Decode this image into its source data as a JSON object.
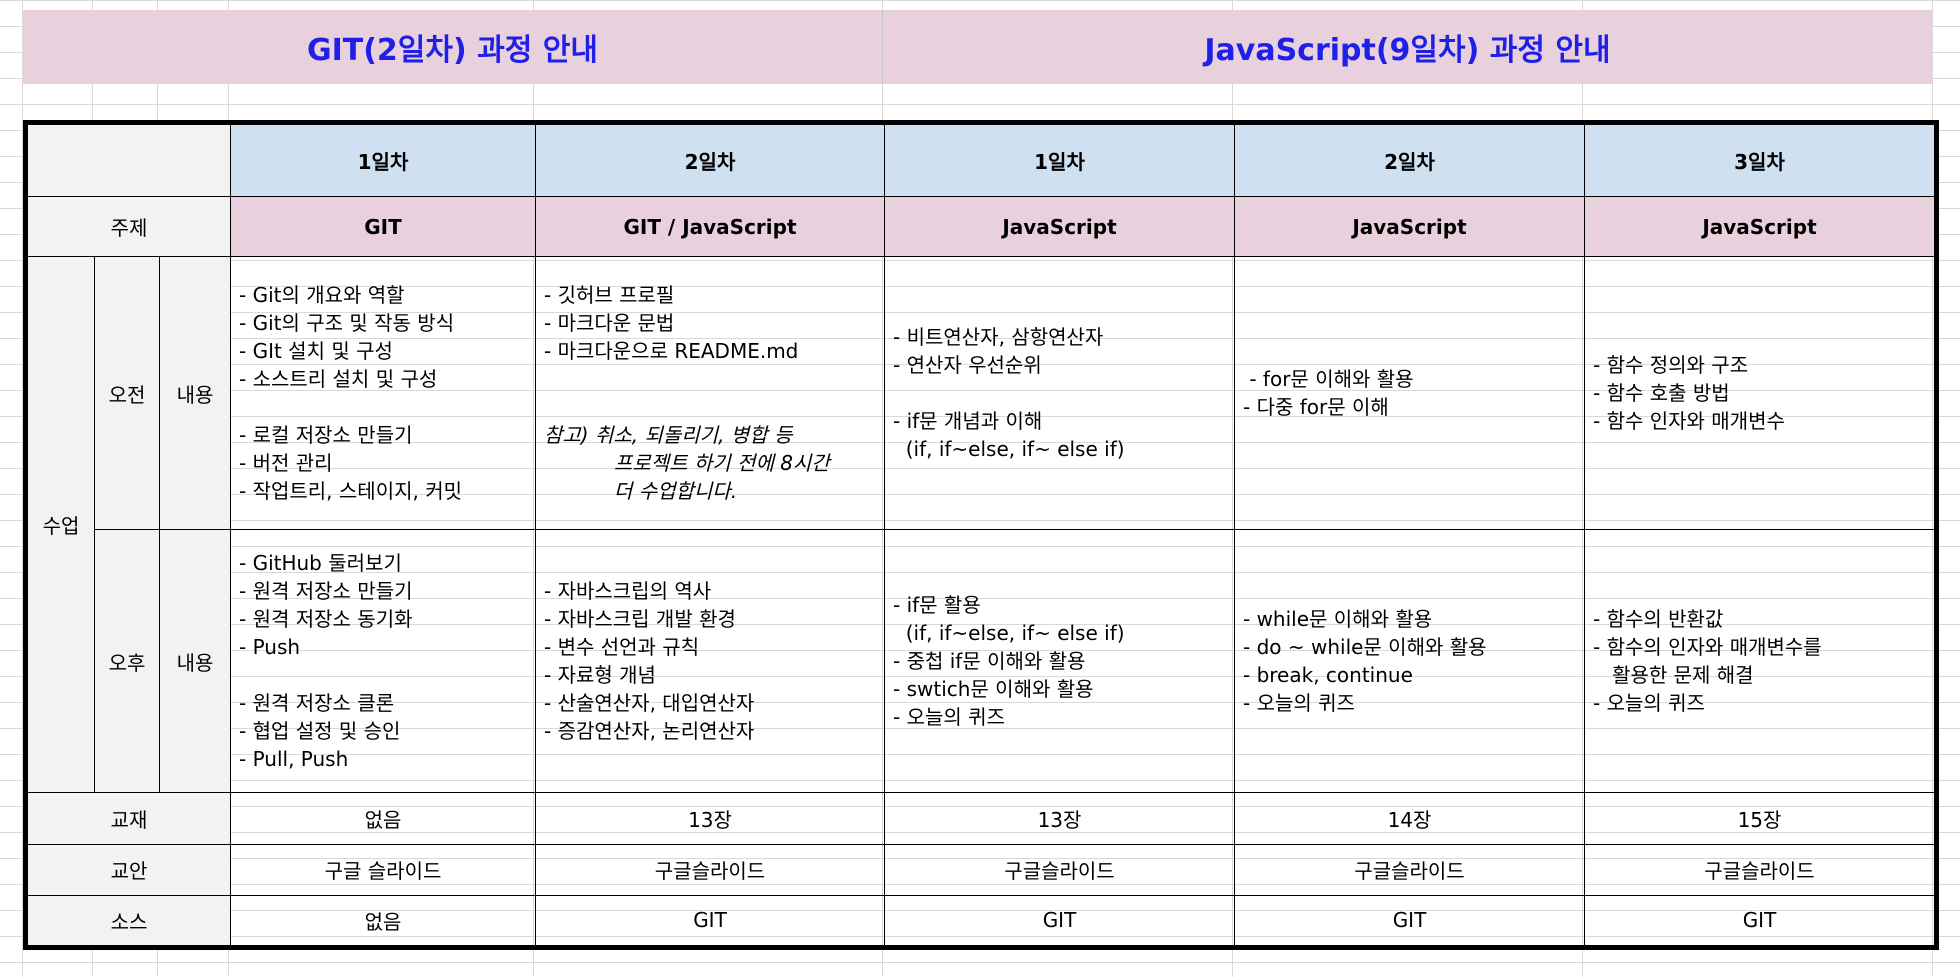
{
  "banners": {
    "left": "GIT(2일차) 과정 안내",
    "right": "JavaScript(9일차) 과정 안내"
  },
  "colors": {
    "banner_bg": "#e8d0dc",
    "banner_text": "#1f1fe8",
    "day_header_bg": "#cfe0f1",
    "day_text": "#e00000"
  },
  "table": {
    "row_labels": {
      "topic": "주제",
      "class": "수업",
      "morning": "오전",
      "afternoon": "오후",
      "content_am": "내용",
      "content_pm": "내용",
      "textbook": "교재",
      "lesson_plan": "교안",
      "source": "소스"
    },
    "days": [
      "1일차",
      "2일차",
      "1일차",
      "2일차",
      "3일차"
    ],
    "topics": [
      "GIT",
      "GIT / JavaScript",
      "JavaScript",
      "JavaScript",
      "JavaScript"
    ],
    "morning": [
      [
        "- Git의 개요와 역할",
        "- Git의 구조 및 작동 방식",
        "- GIt 설치 및 구성",
        "- 소스트리 설치 및 구성",
        "",
        "- 로컬 저장소 만들기",
        "- 버전 관리",
        "- 작업트리, 스테이지, 커밋"
      ],
      [
        "- 깃허브 프로필",
        "- 마크다운 문법",
        "- 마크다운으로 README.md",
        "",
        "",
        "참고) 취소, 되돌리기, 병합 등",
        "           프로젝트 하기 전에 8시간",
        "           더 수업합니다."
      ],
      [
        "- 비트연산자, 삼항연산자",
        "- 연산자 우선순위",
        "",
        "- if문 개념과 이해",
        "  (if, if~else, if~ else if)"
      ],
      [
        " - for문 이해와 활용",
        "- 다중 for문 이해"
      ],
      [
        "- 함수 정의와 구조",
        "- 함수 호출 방법",
        "- 함수 인자와 매개변수"
      ]
    ],
    "afternoon": [
      [
        "- GitHub 둘러보기",
        "- 원격 저장소 만들기",
        "- 원격 저장소 동기화",
        "- Push",
        "",
        "- 원격 저장소 클론",
        "- 협업 설정 및 승인",
        "- Pull, Push"
      ],
      [
        "- 자바스크립의 역사",
        "- 자바스크립 개발 환경",
        "- 변수 선언과 규칙",
        "- 자료형 개념",
        "- 산술연산자, 대입연산자",
        "- 증감연산자, 논리연산자"
      ],
      [
        "- if문 활용",
        "  (if, if~else, if~ else if)",
        "- 중첩 if문 이해와 활용",
        "- swtich문 이해와 활용",
        "- 오늘의 퀴즈"
      ],
      [
        "- while문 이해와 활용",
        "- do ~ while문 이해와 활용",
        "- break, continue",
        "- 오늘의 퀴즈"
      ],
      [
        "- 함수의 반환값",
        "- 함수의 인자와 매개변수를",
        "   활용한 문제 해결",
        "- 오늘의 퀴즈"
      ]
    ],
    "textbook": [
      "없음",
      "13장",
      "13장",
      "14장",
      "15장"
    ],
    "lesson_plan": [
      "구글 슬라이드",
      "구글슬라이드",
      "구글슬라이드",
      "구글슬라이드",
      "구글슬라이드"
    ],
    "source": [
      "없음",
      "GIT",
      "GIT",
      "GIT",
      "GIT"
    ]
  }
}
